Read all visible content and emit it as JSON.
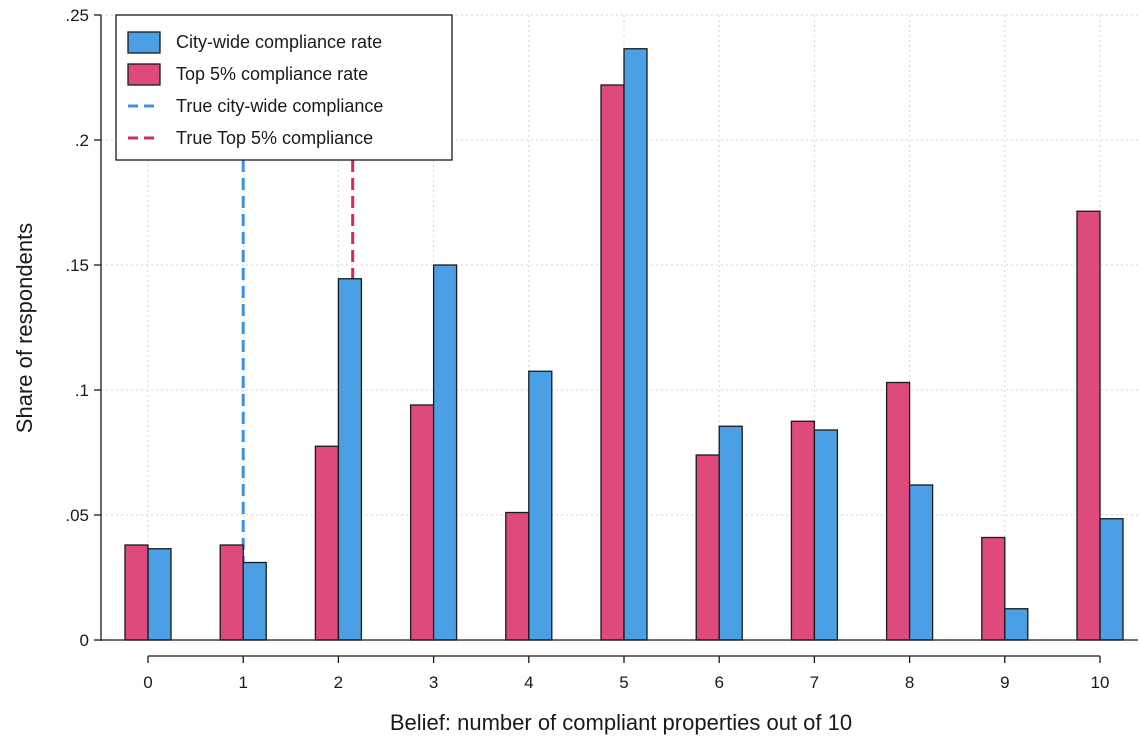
{
  "chart_data": {
    "type": "bar",
    "title": "",
    "xlabel": "Belief: number of compliant properties out of 10",
    "ylabel": "Share of respondents",
    "categories": [
      "0",
      "1",
      "2",
      "3",
      "4",
      "5",
      "6",
      "7",
      "8",
      "9",
      "10"
    ],
    "ylim": [
      0,
      0.25
    ],
    "yticks": [
      0,
      0.05,
      0.1,
      0.15,
      0.2,
      0.25
    ],
    "ytick_labels": [
      "0",
      ".05",
      ".1",
      ".15",
      ".2",
      ".25"
    ],
    "grid": true,
    "legend_position": "top-left",
    "series": [
      {
        "name": "Top 5% compliance rate",
        "color": "#de4a7e",
        "values": [
          0.038,
          0.038,
          0.0775,
          0.094,
          0.051,
          0.222,
          0.074,
          0.0875,
          0.103,
          0.041,
          0.1715
        ]
      },
      {
        "name": "City-wide compliance rate",
        "color": "#4b9fe4",
        "values": [
          0.0365,
          0.031,
          0.1445,
          0.15,
          0.1075,
          0.2365,
          0.0855,
          0.084,
          0.062,
          0.0125,
          0.0485
        ]
      }
    ],
    "reference_lines": [
      {
        "name": "True city-wide compliance",
        "x": 1.0,
        "color": "#3b93e0",
        "style": "dashed"
      },
      {
        "name": "True Top 5% compliance",
        "x": 2.15,
        "color": "#d8275e",
        "style": "dashed"
      }
    ],
    "legend": [
      {
        "label": "City-wide compliance rate",
        "kind": "box",
        "color": "#4b9fe4"
      },
      {
        "label": "Top 5% compliance rate",
        "kind": "box",
        "color": "#de4a7e"
      },
      {
        "label": "True city-wide compliance",
        "kind": "dash",
        "color": "#3b93e0"
      },
      {
        "label": "True Top 5% compliance",
        "kind": "dash",
        "color": "#d8275e"
      }
    ]
  }
}
